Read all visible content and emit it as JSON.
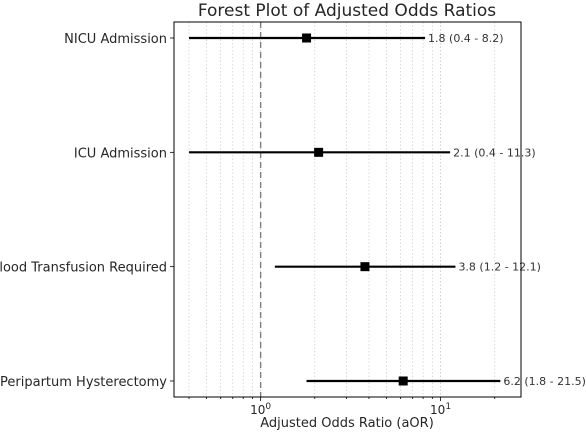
{
  "chart_data": {
    "type": "scatter",
    "title": "Forest Plot of Adjusted Odds Ratios",
    "xlabel": "Adjusted Odds Ratio (aOR)",
    "ylabel": "",
    "xscale": "log",
    "xlim": [
      0.33,
      28
    ],
    "reference_line": 1,
    "grid": "vertical dotted",
    "x_ticks": [
      {
        "base": "10",
        "exp": "0",
        "value": 1
      },
      {
        "base": "10",
        "exp": "1",
        "value": 10
      }
    ],
    "rows": [
      {
        "label": "NICU Admission",
        "or": 1.8,
        "lo": 0.4,
        "hi": 8.2,
        "ci_text": "1.8 (0.4 - 8.2)"
      },
      {
        "label": "ICU Admission",
        "or": 2.1,
        "lo": 0.4,
        "hi": 11.3,
        "ci_text": "2.1 (0.4 - 11.3)"
      },
      {
        "label": "Blood Transfusion Required",
        "or": 3.8,
        "lo": 1.2,
        "hi": 12.1,
        "ci_text": "3.8 (1.2 - 12.1)"
      },
      {
        "label": "Peripartum Hysterectomy",
        "or": 6.2,
        "lo": 1.8,
        "hi": 21.5,
        "ci_text": "6.2 (1.8 - 21.5)"
      }
    ],
    "colors": {
      "marker": "#000000",
      "reference": "#7f7f7f",
      "grid": "#cccccc"
    }
  }
}
